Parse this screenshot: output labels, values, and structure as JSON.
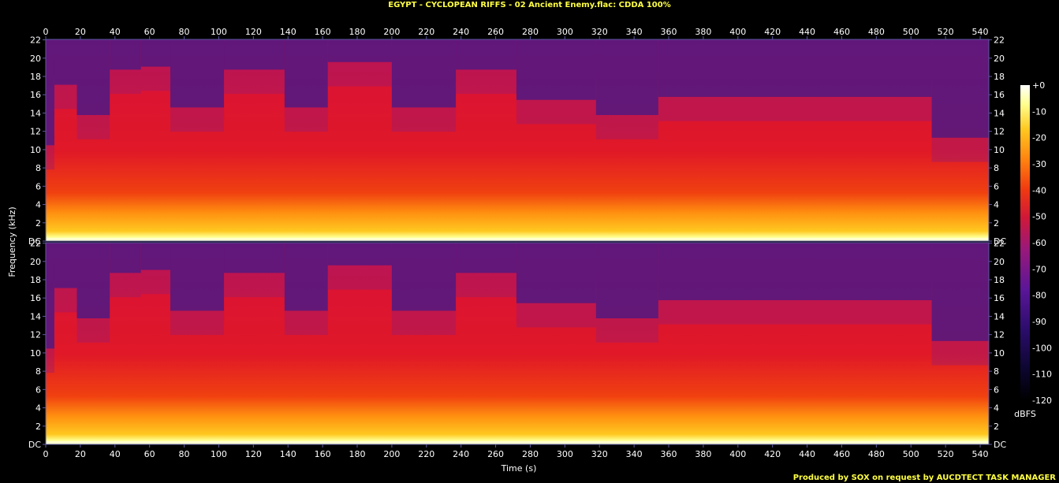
{
  "header": {
    "title": "EGYPT - CYCLOPEAN RIFFS - 02 Ancient Enemy.flac: CDDA 100%"
  },
  "footer": {
    "credit": "Produced by SOX on request by AUCDTECT TASK MANAGER"
  },
  "colors": {
    "background": "#000000",
    "axis": "#5a5aa0",
    "text": "#ffffff",
    "title": "#ffff44",
    "palette": [
      "#000000",
      "#1a0a40",
      "#3a1080",
      "#6a1aa0",
      "#a01870",
      "#d81a30",
      "#f03a10",
      "#ff8010",
      "#ffc820",
      "#ffffa0",
      "#ffffff"
    ]
  },
  "chart_data": {
    "type": "heatmap",
    "xlabel": "Time (s)",
    "ylabel": "Frequency (kHz)",
    "xlim": [
      0,
      545
    ],
    "ylim": [
      0,
      22.05
    ],
    "x_ticks": [
      "0",
      "20",
      "40",
      "60",
      "80",
      "100",
      "120",
      "140",
      "160",
      "180",
      "200",
      "220",
      "240",
      "260",
      "280",
      "300",
      "320",
      "340",
      "360",
      "380",
      "400",
      "420",
      "440",
      "460",
      "480",
      "500",
      "520",
      "540"
    ],
    "y_ticks_left": [
      "DC",
      "2",
      "4",
      "6",
      "8",
      "10",
      "12",
      "14",
      "16",
      "18",
      "20",
      "22"
    ],
    "y_ticks_right": [
      "DC",
      "2",
      "4",
      "6",
      "8",
      "10",
      "12",
      "14",
      "16",
      "18",
      "20",
      "22"
    ],
    "channels": [
      "left",
      "right"
    ],
    "colorbar": {
      "label": "dBFS",
      "range": [
        -120,
        0
      ],
      "ticks": [
        "+0",
        "-10",
        "-20",
        "-30",
        "-40",
        "-50",
        "-60",
        "-70",
        "-80",
        "-90",
        "-100",
        "-110",
        "-120"
      ]
    },
    "segments": [
      {
        "start": 0,
        "end": 5,
        "level": 0.3
      },
      {
        "start": 5,
        "end": 18,
        "level": 0.7
      },
      {
        "start": 18,
        "end": 37,
        "level": 0.5
      },
      {
        "start": 37,
        "end": 55,
        "level": 0.8
      },
      {
        "start": 55,
        "end": 72,
        "level": 0.82
      },
      {
        "start": 72,
        "end": 103,
        "level": 0.55
      },
      {
        "start": 103,
        "end": 138,
        "level": 0.8
      },
      {
        "start": 138,
        "end": 163,
        "level": 0.55
      },
      {
        "start": 163,
        "end": 200,
        "level": 0.85
      },
      {
        "start": 200,
        "end": 237,
        "level": 0.55
      },
      {
        "start": 237,
        "end": 272,
        "level": 0.8
      },
      {
        "start": 272,
        "end": 318,
        "level": 0.6
      },
      {
        "start": 318,
        "end": 354,
        "level": 0.5
      },
      {
        "start": 354,
        "end": 512,
        "level": 0.62
      },
      {
        "start": 512,
        "end": 545,
        "level": 0.35
      }
    ]
  }
}
